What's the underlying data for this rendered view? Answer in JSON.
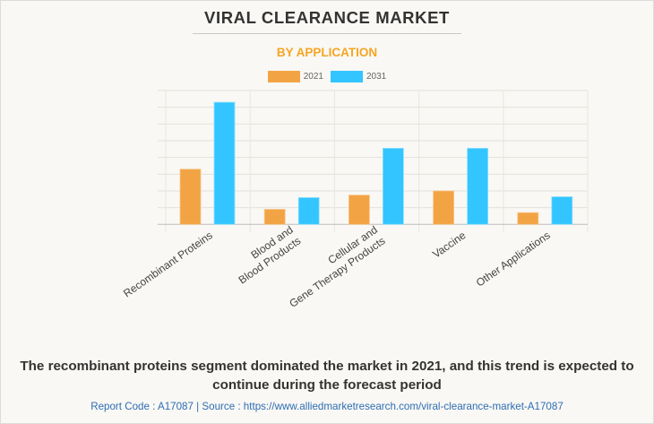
{
  "header": {
    "title": "VIRAL CLEARANCE MARKET",
    "subtitle": "BY APPLICATION"
  },
  "colors": {
    "series_2021": "#f2a444",
    "series_2031": "#33c5ff",
    "title": "#333333",
    "subtitle": "#f5a623",
    "source_link": "#2e6db4"
  },
  "chart_data": {
    "type": "bar",
    "title": "VIRAL CLEARANCE MARKET",
    "subtitle": "BY APPLICATION",
    "xlabel": "",
    "ylabel": "",
    "y_units_note": "No y-axis tick labels shown; values estimated in gridline units",
    "ylim": [
      0,
      8
    ],
    "grid": true,
    "legend_position": "top-center",
    "categories": [
      [
        "Recombinant Proteins"
      ],
      [
        "Blood and",
        "Blood Products"
      ],
      [
        "Cellular and",
        "Gene Therapy Products"
      ],
      [
        "Vaccine"
      ],
      [
        "Other Applications"
      ]
    ],
    "series": [
      {
        "name": "2021",
        "color": "#f2a444",
        "values": [
          3.3,
          0.9,
          1.75,
          2.0,
          0.7
        ]
      },
      {
        "name": "2031",
        "color": "#33c5ff",
        "values": [
          7.3,
          1.6,
          4.55,
          4.55,
          1.65
        ]
      }
    ]
  },
  "footer": {
    "summary": "The recombinant proteins segment dominated the market in 2021, and this trend is expected to continue during the forecast period",
    "source": "Report Code : A17087  |  Source : https://www.alliedmarketresearch.com/viral-clearance-market-A17087"
  }
}
